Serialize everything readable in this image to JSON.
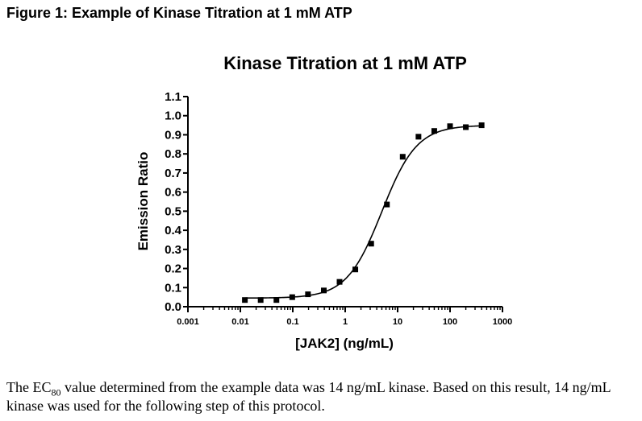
{
  "figure_caption": "Figure 1: Example of Kinase Titration at 1 mM ATP",
  "body_text": {
    "part1": "The EC",
    "sub": "80",
    "part2": " value determined from the example data was 14 ng/mL kinase.  Based on this result, 14 ng/mL kinase was used for the following step of this protocol."
  },
  "chart_data": {
    "type": "scatter",
    "title": "Kinase Titration at 1 mM ATP",
    "xlabel": "[JAK2] (ng/mL)",
    "ylabel": "Emission Ratio",
    "xscale": "log",
    "xlim": [
      0.001,
      1000
    ],
    "ylim": [
      0.0,
      1.1
    ],
    "xticks": [
      "0.001",
      "0.01",
      "0.1",
      "1",
      "10",
      "100",
      "1000"
    ],
    "yticks": [
      "0.0",
      "0.1",
      "0.2",
      "0.3",
      "0.4",
      "0.5",
      "0.6",
      "0.7",
      "0.8",
      "0.9",
      "1.0",
      "1.1"
    ],
    "grid": false,
    "legend": "none",
    "series": [
      {
        "marker": "square",
        "color": "#000000",
        "x": [
          0.0122,
          0.0244,
          0.0488,
          0.0977,
          0.195,
          0.391,
          0.781,
          1.56,
          3.13,
          6.25,
          12.5,
          25,
          50,
          100,
          200,
          400
        ],
        "y": [
          0.035,
          0.035,
          0.035,
          0.05,
          0.065,
          0.085,
          0.13,
          0.195,
          0.33,
          0.535,
          0.785,
          0.89,
          0.92,
          0.945,
          0.94,
          0.95
        ]
      }
    ],
    "fit_curve": {
      "model": "sigmoidal dose-response",
      "bottom": 0.045,
      "top": 0.95,
      "ec50": 5.0,
      "hill": 1.3,
      "x_range": [
        0.0122,
        400
      ]
    }
  }
}
